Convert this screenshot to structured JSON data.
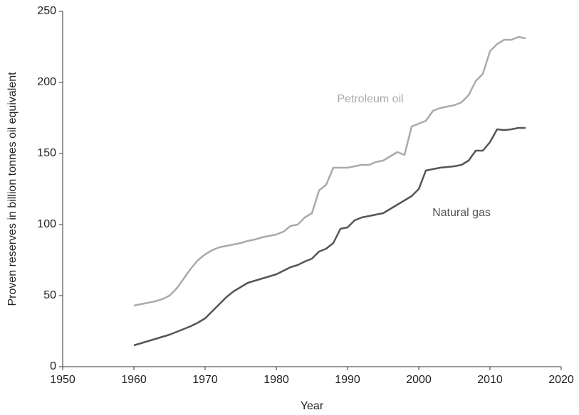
{
  "chart_data": {
    "type": "line",
    "x_label": "Year",
    "y_label": "Proven reserves in billion tonnes oil equivalent",
    "x": [
      1960,
      1961,
      1962,
      1963,
      1964,
      1965,
      1966,
      1967,
      1968,
      1969,
      1970,
      1971,
      1972,
      1973,
      1974,
      1975,
      1976,
      1977,
      1978,
      1979,
      1980,
      1981,
      1982,
      1983,
      1984,
      1985,
      1986,
      1987,
      1988,
      1989,
      1990,
      1991,
      1992,
      1993,
      1994,
      1995,
      1996,
      1997,
      1998,
      1999,
      2000,
      2001,
      2002,
      2003,
      2004,
      2005,
      2006,
      2007,
      2008,
      2009,
      2010,
      2011,
      2012,
      2013,
      2014,
      2015
    ],
    "series": [
      {
        "name": "Petroleum oil",
        "color": "#aaaaaa",
        "values": [
          43,
          44,
          45,
          46,
          47.5,
          50,
          55,
          62,
          69,
          75,
          79,
          82,
          84,
          85,
          86,
          87,
          88.5,
          89.5,
          91,
          92,
          93,
          95,
          99,
          100,
          105,
          108,
          124,
          128,
          140,
          140,
          140,
          141,
          142,
          142,
          144,
          145,
          148,
          151,
          149,
          169,
          171,
          173,
          180,
          182,
          183,
          184,
          186,
          191,
          201,
          206,
          222,
          227,
          230,
          230,
          232,
          231
        ]
      },
      {
        "name": "Natural gas",
        "color": "#555555",
        "values": [
          15,
          16.5,
          18,
          19.5,
          21,
          22.5,
          24.5,
          26.5,
          28.5,
          31,
          34,
          39,
          44,
          49,
          53,
          56,
          59,
          60.5,
          62,
          63.5,
          65,
          67.5,
          70,
          71.5,
          74,
          76,
          81,
          83,
          87,
          97,
          98,
          103,
          105,
          106,
          107,
          108,
          111,
          114,
          117,
          120,
          125,
          138,
          139,
          140,
          140.5,
          141,
          142,
          145,
          152,
          152,
          158,
          167,
          166.5,
          167,
          168,
          168
        ]
      }
    ],
    "xlim": [
      1950,
      2020
    ],
    "xticks": [
      1950,
      1960,
      1970,
      1980,
      1990,
      2000,
      2010,
      2020
    ],
    "ylim": [
      0,
      250
    ],
    "yticks": [
      0,
      50,
      100,
      150,
      200,
      250
    ],
    "grid": false
  }
}
